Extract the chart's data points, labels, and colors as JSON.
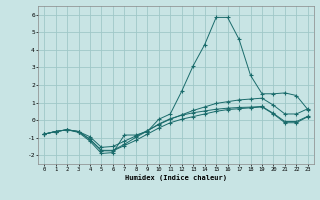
{
  "xlabel": "Humidex (Indice chaleur)",
  "x": [
    0,
    1,
    2,
    3,
    4,
    5,
    6,
    7,
    8,
    9,
    10,
    11,
    12,
    13,
    14,
    15,
    16,
    17,
    18,
    19,
    20,
    21,
    22,
    23
  ],
  "line1": [
    -0.8,
    -0.65,
    -0.55,
    -0.7,
    -1.2,
    -1.9,
    -1.85,
    -0.85,
    -0.85,
    -0.65,
    0.05,
    0.35,
    1.65,
    3.1,
    4.3,
    5.85,
    5.85,
    4.6,
    2.55,
    1.5,
    1.5,
    1.55,
    1.4,
    0.6
  ],
  "line2": [
    -0.8,
    -0.65,
    -0.55,
    -0.65,
    -0.95,
    -1.55,
    -1.5,
    -1.2,
    -0.9,
    -0.6,
    -0.25,
    0.05,
    0.3,
    0.55,
    0.75,
    0.95,
    1.05,
    1.15,
    1.2,
    1.25,
    0.85,
    0.35,
    0.35,
    0.65
  ],
  "line3": [
    -0.8,
    -0.65,
    -0.55,
    -0.65,
    -1.1,
    -1.75,
    -1.75,
    -1.45,
    -1.15,
    -0.8,
    -0.45,
    -0.15,
    0.05,
    0.2,
    0.35,
    0.5,
    0.6,
    0.65,
    0.7,
    0.75,
    0.35,
    -0.15,
    -0.15,
    0.2
  ],
  "line4": [
    -0.8,
    -0.65,
    -0.55,
    -0.65,
    -1.1,
    -1.72,
    -1.72,
    -1.38,
    -0.98,
    -0.62,
    -0.22,
    0.08,
    0.28,
    0.42,
    0.52,
    0.62,
    0.68,
    0.72,
    0.74,
    0.78,
    0.38,
    -0.08,
    -0.08,
    0.22
  ],
  "bg_color": "#c8e4e4",
  "grid_color": "#a0c8c8",
  "line_color": "#1a6b6b",
  "ylim": [
    -2.5,
    6.5
  ],
  "xlim": [
    -0.5,
    23.5
  ],
  "yticks": [
    -2,
    -1,
    0,
    1,
    2,
    3,
    4,
    5,
    6
  ],
  "xticks": [
    0,
    1,
    2,
    3,
    4,
    5,
    6,
    7,
    8,
    9,
    10,
    11,
    12,
    13,
    14,
    15,
    16,
    17,
    18,
    19,
    20,
    21,
    22,
    23
  ]
}
